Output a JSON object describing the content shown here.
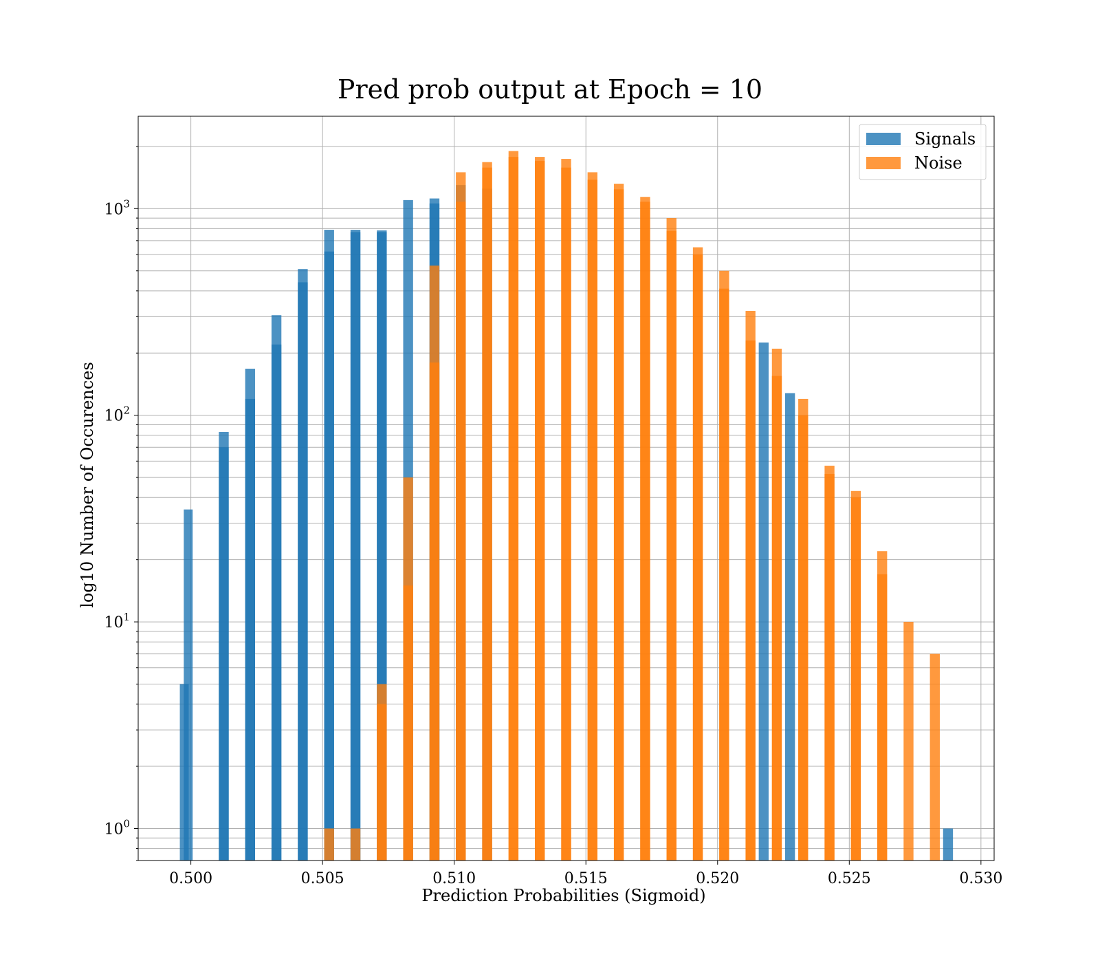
{
  "chart_data": {
    "type": "bar",
    "title": "Pred prob output at Epoch = 10",
    "xlabel": "Prediction Probabilities (Sigmoid)",
    "ylabel": "log10 Number of Occurences",
    "xlim": [
      0.498,
      0.5305
    ],
    "ylim": [
      0.7,
      2800
    ],
    "yscale": "log",
    "grid": true,
    "legend_position": "top-right",
    "bin_width": 0.0005,
    "xticks": [
      0.5,
      0.505,
      0.51,
      0.515,
      0.52,
      0.525,
      0.53
    ],
    "xtick_labels": [
      "0.500",
      "0.505",
      "0.510",
      "0.515",
      "0.520",
      "0.525",
      "0.530"
    ],
    "ytick_labels": [
      {
        "value": 1,
        "base": "10",
        "exp": "0"
      },
      {
        "value": 10,
        "base": "10",
        "exp": "1"
      },
      {
        "value": 100,
        "base": "10",
        "exp": "2"
      },
      {
        "value": 1000,
        "base": "10",
        "exp": "3"
      }
    ],
    "series": [
      {
        "name": "Signals",
        "color": "#1f77b4",
        "bars": [
          {
            "x": 0.49975,
            "values": [
              5
            ]
          },
          {
            "x": 0.4999,
            "values": [
              35
            ]
          },
          {
            "x": 0.50125,
            "values": [
              70,
              83
            ]
          },
          {
            "x": 0.50225,
            "values": [
              120,
              168
            ]
          },
          {
            "x": 0.50325,
            "values": [
              220,
              305
            ]
          },
          {
            "x": 0.50425,
            "values": [
              440,
              510
            ]
          },
          {
            "x": 0.50525,
            "values": [
              620,
              790
            ]
          },
          {
            "x": 0.50625,
            "values": [
              770,
              790
            ]
          },
          {
            "x": 0.50725,
            "values": [
              770,
              785
            ]
          },
          {
            "x": 0.50825,
            "values": [
              1100
            ]
          },
          {
            "x": 0.50925,
            "values": [
              1060,
              1120
            ]
          },
          {
            "x": 0.51025,
            "values": [
              1300
            ]
          },
          {
            "x": 0.51125,
            "values": [
              1250
            ]
          },
          {
            "x": 0.52175,
            "values": [
              225
            ]
          },
          {
            "x": 0.52275,
            "values": [
              128
            ]
          },
          {
            "x": 0.52875,
            "values": [
              1
            ]
          }
        ]
      },
      {
        "name": "Noise",
        "color": "#ff7f0e",
        "bars": [
          {
            "x": 0.50525,
            "values": [
              1
            ]
          },
          {
            "x": 0.50625,
            "values": [
              1
            ]
          },
          {
            "x": 0.50725,
            "values": [
              4,
              5
            ]
          },
          {
            "x": 0.50825,
            "values": [
              15,
              50
            ]
          },
          {
            "x": 0.50925,
            "values": [
              180,
              530
            ]
          },
          {
            "x": 0.51025,
            "values": [
              1080,
              1500
            ]
          },
          {
            "x": 0.51125,
            "values": [
              1580,
              1680
            ]
          },
          {
            "x": 0.51225,
            "values": [
              1780,
              1900
            ]
          },
          {
            "x": 0.51325,
            "values": [
              1700,
              1780
            ]
          },
          {
            "x": 0.51425,
            "values": [
              1580,
              1740
            ]
          },
          {
            "x": 0.51525,
            "values": [
              1380,
              1500
            ]
          },
          {
            "x": 0.51625,
            "values": [
              1240,
              1320
            ]
          },
          {
            "x": 0.51725,
            "values": [
              1080,
              1140
            ]
          },
          {
            "x": 0.51825,
            "values": [
              780,
              900
            ]
          },
          {
            "x": 0.51925,
            "values": [
              600,
              650
            ]
          },
          {
            "x": 0.52025,
            "values": [
              410,
              500
            ]
          },
          {
            "x": 0.52125,
            "values": [
              230,
              320
            ]
          },
          {
            "x": 0.52225,
            "values": [
              155,
              210
            ]
          },
          {
            "x": 0.52325,
            "values": [
              100,
              120
            ]
          },
          {
            "x": 0.52425,
            "values": [
              52,
              57
            ]
          },
          {
            "x": 0.52525,
            "values": [
              40,
              43
            ]
          },
          {
            "x": 0.52625,
            "values": [
              17,
              22
            ]
          },
          {
            "x": 0.52725,
            "values": [
              10
            ]
          },
          {
            "x": 0.52825,
            "values": [
              7
            ]
          }
        ]
      }
    ]
  }
}
